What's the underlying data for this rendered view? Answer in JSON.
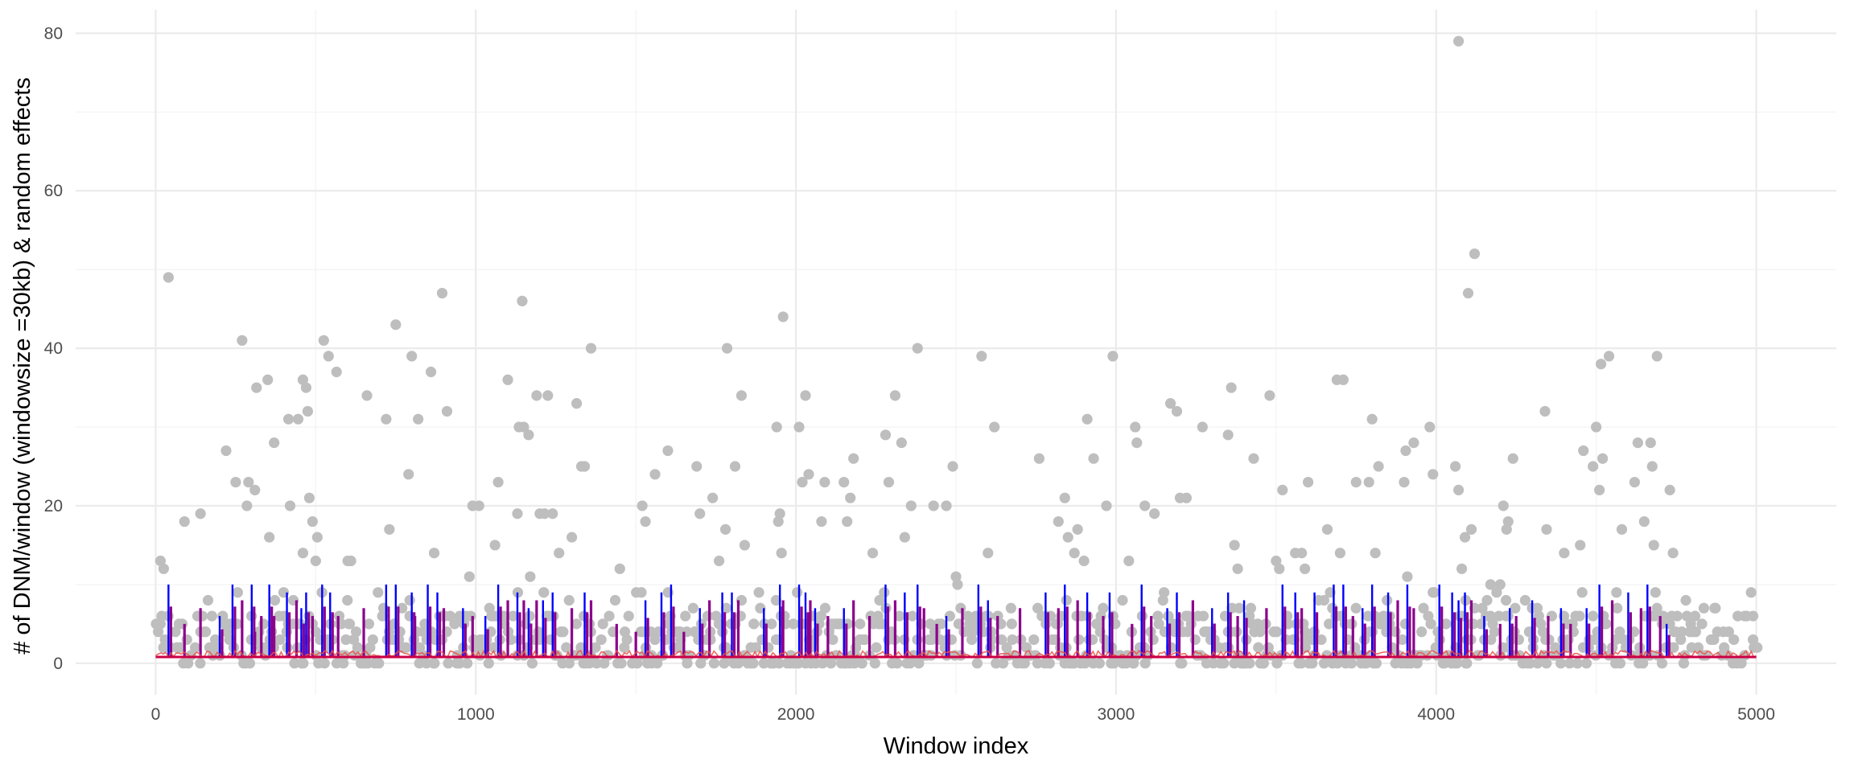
{
  "chart_data": {
    "type": "scatter",
    "xlabel": "Window index",
    "ylabel": "# of DNM/window (windowsize =30kb) & random effects",
    "xlim": [
      -250,
      5250
    ],
    "ylim": [
      -4,
      83
    ],
    "x_ticks": [
      0,
      1000,
      2000,
      3000,
      4000,
      5000
    ],
    "y_ticks": [
      0,
      20,
      40,
      60,
      80
    ],
    "grid": true,
    "legend": "none",
    "colors": {
      "points": "#bebebe",
      "blue": "#0000ff",
      "red": "#e8524a",
      "purple": "#8b008b",
      "crimson": "#cc0044"
    },
    "series": [
      {
        "type": "scatter",
        "points": [
          [
            15,
            13
          ],
          [
            25,
            12
          ],
          [
            40,
            49
          ],
          [
            90,
            18
          ],
          [
            140,
            19
          ],
          [
            220,
            27
          ],
          [
            250,
            23
          ],
          [
            270,
            41
          ],
          [
            285,
            20
          ],
          [
            290,
            23
          ],
          [
            310,
            22
          ],
          [
            315,
            35
          ],
          [
            350,
            36
          ],
          [
            355,
            16
          ],
          [
            370,
            28
          ],
          [
            415,
            31
          ],
          [
            420,
            20
          ],
          [
            445,
            31
          ],
          [
            460,
            36
          ],
          [
            460,
            14
          ],
          [
            470,
            35
          ],
          [
            475,
            32
          ],
          [
            480,
            21
          ],
          [
            490,
            18
          ],
          [
            500,
            13
          ],
          [
            505,
            16
          ],
          [
            525,
            41
          ],
          [
            540,
            39
          ],
          [
            565,
            37
          ],
          [
            600,
            13
          ],
          [
            610,
            13
          ],
          [
            660,
            34
          ],
          [
            720,
            31
          ],
          [
            730,
            17
          ],
          [
            750,
            43
          ],
          [
            790,
            24
          ],
          [
            800,
            39
          ],
          [
            820,
            31
          ],
          [
            860,
            37
          ],
          [
            870,
            14
          ],
          [
            895,
            47
          ],
          [
            910,
            32
          ],
          [
            980,
            11
          ],
          [
            990,
            20
          ],
          [
            1010,
            20
          ],
          [
            1060,
            15
          ],
          [
            1070,
            23
          ],
          [
            1100,
            36
          ],
          [
            1130,
            19
          ],
          [
            1135,
            30
          ],
          [
            1145,
            46
          ],
          [
            1150,
            30
          ],
          [
            1165,
            29
          ],
          [
            1170,
            11
          ],
          [
            1190,
            34
          ],
          [
            1200,
            19
          ],
          [
            1215,
            19
          ],
          [
            1225,
            34
          ],
          [
            1240,
            19
          ],
          [
            1260,
            14
          ],
          [
            1300,
            16
          ],
          [
            1315,
            33
          ],
          [
            1330,
            25
          ],
          [
            1340,
            25
          ],
          [
            1360,
            40
          ],
          [
            1450,
            12
          ],
          [
            1520,
            20
          ],
          [
            1530,
            18
          ],
          [
            1560,
            24
          ],
          [
            1600,
            27
          ],
          [
            1690,
            25
          ],
          [
            1700,
            19
          ],
          [
            1740,
            21
          ],
          [
            1760,
            13
          ],
          [
            1780,
            17
          ],
          [
            1785,
            40
          ],
          [
            1810,
            25
          ],
          [
            1830,
            34
          ],
          [
            1840,
            15
          ],
          [
            1940,
            30
          ],
          [
            1945,
            18
          ],
          [
            1950,
            19
          ],
          [
            1955,
            14
          ],
          [
            1960,
            44
          ],
          [
            2010,
            30
          ],
          [
            2020,
            23
          ],
          [
            2030,
            34
          ],
          [
            2040,
            24
          ],
          [
            2080,
            18
          ],
          [
            2090,
            23
          ],
          [
            2150,
            23
          ],
          [
            2160,
            18
          ],
          [
            2170,
            21
          ],
          [
            2180,
            26
          ],
          [
            2240,
            14
          ],
          [
            2280,
            29
          ],
          [
            2290,
            23
          ],
          [
            2310,
            34
          ],
          [
            2330,
            28
          ],
          [
            2340,
            16
          ],
          [
            2360,
            20
          ],
          [
            2380,
            40
          ],
          [
            2430,
            20
          ],
          [
            2470,
            20
          ],
          [
            2490,
            25
          ],
          [
            2500,
            11
          ],
          [
            2505,
            10
          ],
          [
            2580,
            39
          ],
          [
            2600,
            14
          ],
          [
            2620,
            30
          ],
          [
            2760,
            26
          ],
          [
            2820,
            18
          ],
          [
            2840,
            21
          ],
          [
            2850,
            16
          ],
          [
            2870,
            14
          ],
          [
            2880,
            17
          ],
          [
            2900,
            13
          ],
          [
            2910,
            31
          ],
          [
            2930,
            26
          ],
          [
            2970,
            20
          ],
          [
            2990,
            39
          ],
          [
            3040,
            13
          ],
          [
            3060,
            30
          ],
          [
            3065,
            28
          ],
          [
            3090,
            20
          ],
          [
            3120,
            19
          ],
          [
            3170,
            33
          ],
          [
            3190,
            32
          ],
          [
            3200,
            21
          ],
          [
            3220,
            21
          ],
          [
            3270,
            30
          ],
          [
            3350,
            29
          ],
          [
            3360,
            35
          ],
          [
            3370,
            15
          ],
          [
            3380,
            12
          ],
          [
            3430,
            26
          ],
          [
            3480,
            34
          ],
          [
            3500,
            13
          ],
          [
            3510,
            12
          ],
          [
            3520,
            22
          ],
          [
            3560,
            14
          ],
          [
            3580,
            14
          ],
          [
            3590,
            12
          ],
          [
            3600,
            23
          ],
          [
            3660,
            17
          ],
          [
            3690,
            36
          ],
          [
            3700,
            14
          ],
          [
            3710,
            36
          ],
          [
            3750,
            23
          ],
          [
            3790,
            23
          ],
          [
            3800,
            31
          ],
          [
            3810,
            14
          ],
          [
            3820,
            25
          ],
          [
            3900,
            23
          ],
          [
            3905,
            27
          ],
          [
            3910,
            11
          ],
          [
            3930,
            28
          ],
          [
            3980,
            30
          ],
          [
            3990,
            24
          ],
          [
            4060,
            25
          ],
          [
            4070,
            22
          ],
          [
            4070,
            79
          ],
          [
            4080,
            12
          ],
          [
            4090,
            16
          ],
          [
            4100,
            47
          ],
          [
            4110,
            17
          ],
          [
            4120,
            52
          ],
          [
            4170,
            10
          ],
          [
            4200,
            10
          ],
          [
            4210,
            20
          ],
          [
            4220,
            17
          ],
          [
            4225,
            18
          ],
          [
            4240,
            26
          ],
          [
            4300,
            7
          ],
          [
            4340,
            32
          ],
          [
            4345,
            17
          ],
          [
            4400,
            14
          ],
          [
            4450,
            15
          ],
          [
            4460,
            27
          ],
          [
            4490,
            25
          ],
          [
            4500,
            30
          ],
          [
            4510,
            22
          ],
          [
            4515,
            38
          ],
          [
            4520,
            26
          ],
          [
            4540,
            39
          ],
          [
            4580,
            17
          ],
          [
            4620,
            23
          ],
          [
            4630,
            28
          ],
          [
            4650,
            18
          ],
          [
            4670,
            28
          ],
          [
            4675,
            25
          ],
          [
            4680,
            15
          ],
          [
            4690,
            39
          ],
          [
            4730,
            22
          ],
          [
            4740,
            14
          ],
          [
            4780,
            8
          ],
          [
            4870,
            7
          ],
          [
            4990,
            6
          ]
        ]
      }
    ]
  }
}
